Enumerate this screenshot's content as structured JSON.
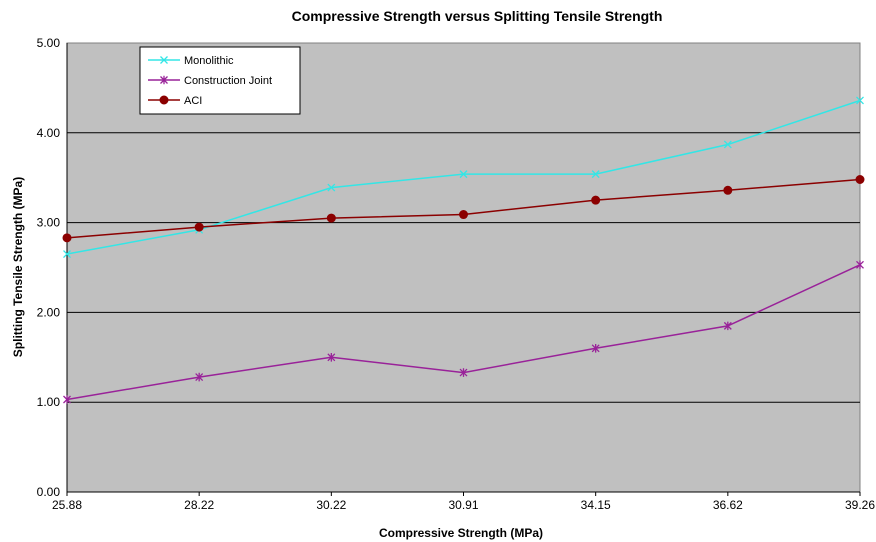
{
  "chart_data": {
    "type": "line",
    "title": "Compressive Strength versus Splitting Tensile Strength",
    "xlabel": "Compressive Strength (MPa)",
    "ylabel": "Splitting Tensile Strength (MPa)",
    "categories": [
      "25.88",
      "28.22",
      "30.22",
      "30.91",
      "34.15",
      "36.62",
      "39.26"
    ],
    "yticks": [
      "0.00",
      "1.00",
      "2.00",
      "3.00",
      "4.00",
      "5.00"
    ],
    "ylim": [
      0,
      5
    ],
    "grid": true,
    "legend_position": "top-left",
    "plot_background": "#c0c0c0",
    "series": [
      {
        "name": "Monolithic",
        "color": "#33e6e6",
        "marker": "x",
        "values": [
          2.65,
          2.92,
          3.39,
          3.54,
          3.54,
          3.87,
          4.36
        ]
      },
      {
        "name": "Construction Joint",
        "color": "#992299",
        "marker": "asterisk",
        "values": [
          1.03,
          1.28,
          1.5,
          1.33,
          1.6,
          1.85,
          2.53
        ]
      },
      {
        "name": "ACI",
        "color": "#8b0000",
        "marker": "circle",
        "values": [
          2.83,
          2.95,
          3.05,
          3.09,
          3.25,
          3.36,
          3.48
        ]
      }
    ]
  }
}
